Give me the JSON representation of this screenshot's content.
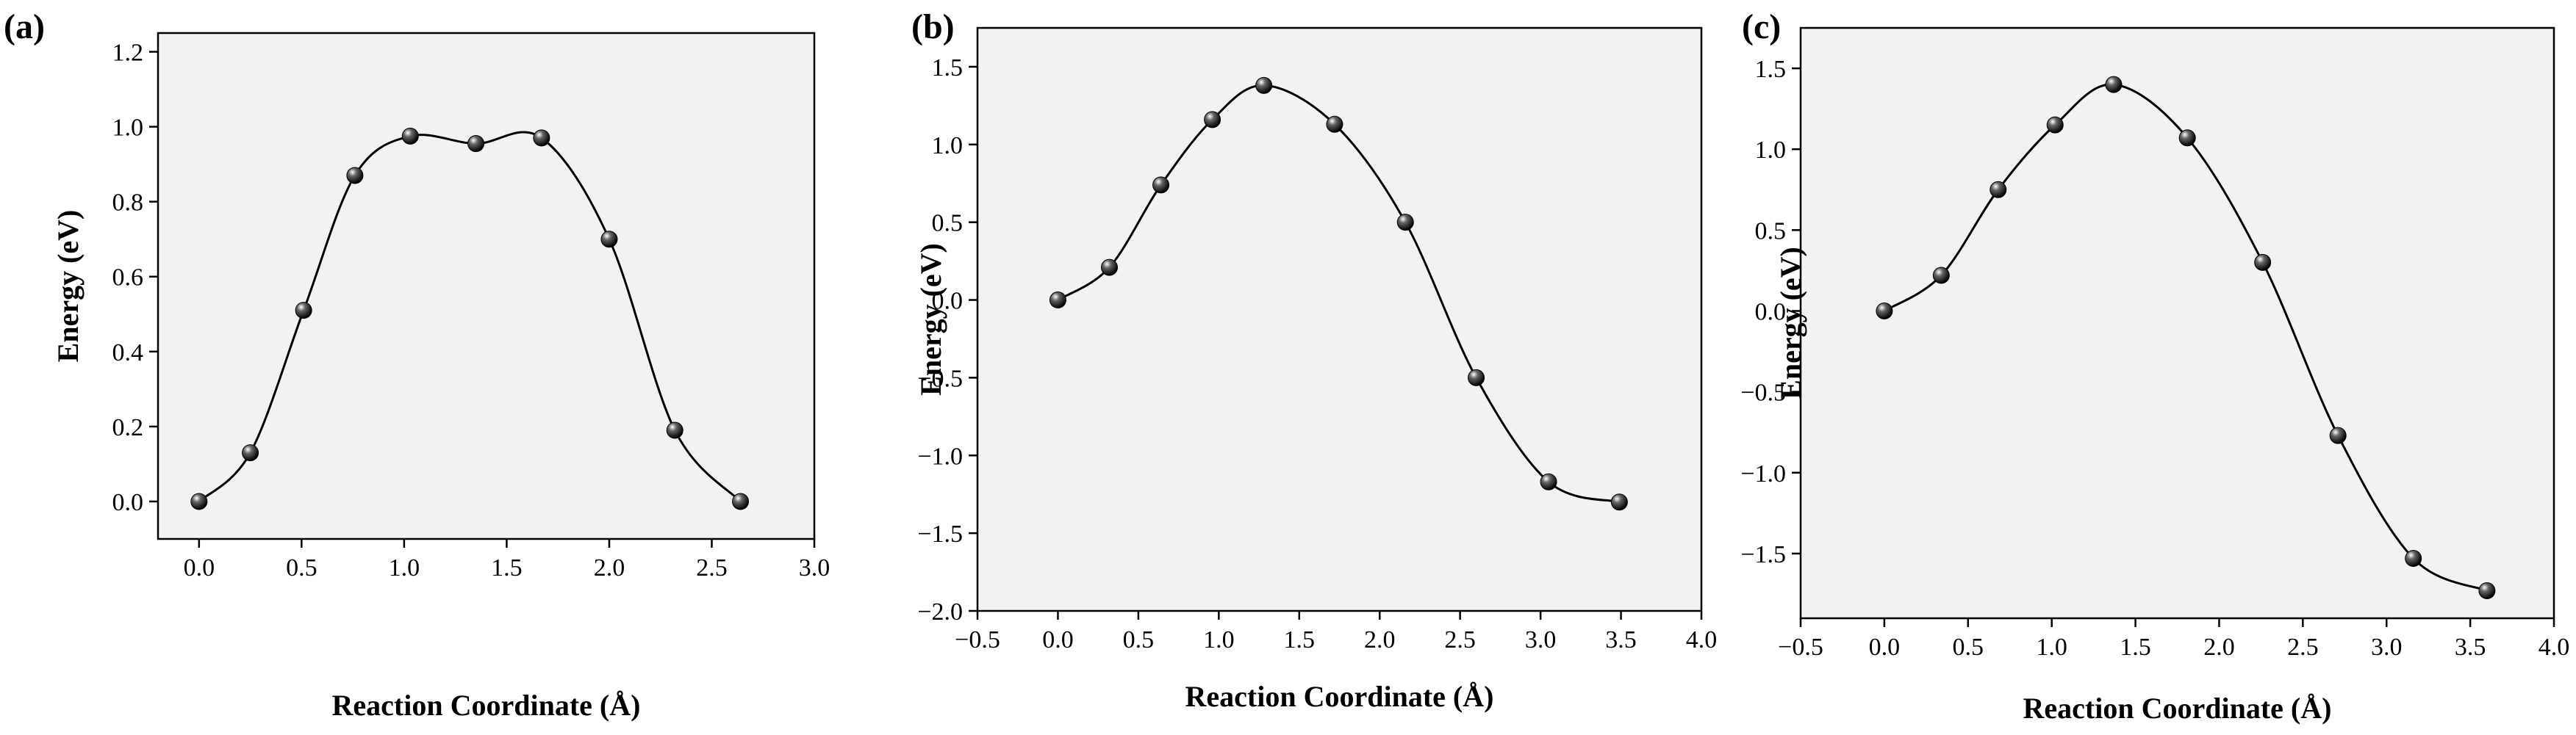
{
  "chart_data": [
    {
      "type": "line",
      "panel_label": "(a)",
      "xlabel": "Reaction Coordinate (Å)",
      "ylabel": "Energy (eV)",
      "xlim": [
        -0.2,
        3.0
      ],
      "ylim": [
        -0.1,
        1.25
      ],
      "xticks": [
        "0.0",
        "0.5",
        "1.0",
        "1.5",
        "2.0",
        "2.5",
        "3.0"
      ],
      "yticks": [
        "0.0",
        "0.2",
        "0.4",
        "0.6",
        "0.8",
        "1.0",
        "1.2"
      ],
      "x": [
        0.0,
        0.25,
        0.51,
        0.76,
        1.03,
        1.35,
        1.67,
        2.0,
        2.32,
        2.64
      ],
      "y": [
        0.0,
        0.13,
        0.51,
        0.87,
        0.975,
        0.955,
        0.97,
        0.7,
        0.19,
        0.0
      ],
      "grid": false
    },
    {
      "type": "line",
      "panel_label": "(b)",
      "xlabel": "Reaction Coordinate (Å)",
      "ylabel": "Energy (eV)",
      "xlim": [
        -0.5,
        4.0
      ],
      "ylim": [
        -2.0,
        1.75
      ],
      "xticks": [
        "−0.5",
        "0.0",
        "0.5",
        "1.0",
        "1.5",
        "2.0",
        "2.5",
        "3.0",
        "3.5",
        "4.0"
      ],
      "yticks": [
        "−2.0",
        "−1.5",
        "−1.0",
        "−0.5",
        "0.0",
        "0.5",
        "1.0",
        "1.5"
      ],
      "x": [
        0.0,
        0.32,
        0.64,
        0.96,
        1.28,
        1.72,
        2.16,
        2.6,
        3.05,
        3.49
      ],
      "y": [
        0.0,
        0.21,
        0.74,
        1.16,
        1.38,
        1.13,
        0.5,
        -0.5,
        -1.17,
        -1.3
      ],
      "grid": false
    },
    {
      "type": "line",
      "panel_label": "(c)",
      "xlabel": "Reaction Coordinate (Å)",
      "ylabel": "Energy (eV)",
      "xlim": [
        -0.5,
        4.0
      ],
      "ylim": [
        -1.9,
        1.75
      ],
      "xticks": [
        "−0.5",
        "0.0",
        "0.5",
        "1.0",
        "1.5",
        "2.0",
        "2.5",
        "3.0",
        "3.5",
        "4.0"
      ],
      "yticks": [
        "−1.5",
        "−1.0",
        "−0.5",
        "0.0",
        "0.5",
        "1.0",
        "1.5"
      ],
      "x": [
        0.0,
        0.34,
        0.68,
        1.02,
        1.37,
        1.81,
        2.26,
        2.71,
        3.16,
        3.6
      ],
      "y": [
        0.0,
        0.22,
        0.75,
        1.15,
        1.4,
        1.07,
        0.3,
        -0.77,
        -1.53,
        -1.73
      ],
      "grid": false
    }
  ]
}
